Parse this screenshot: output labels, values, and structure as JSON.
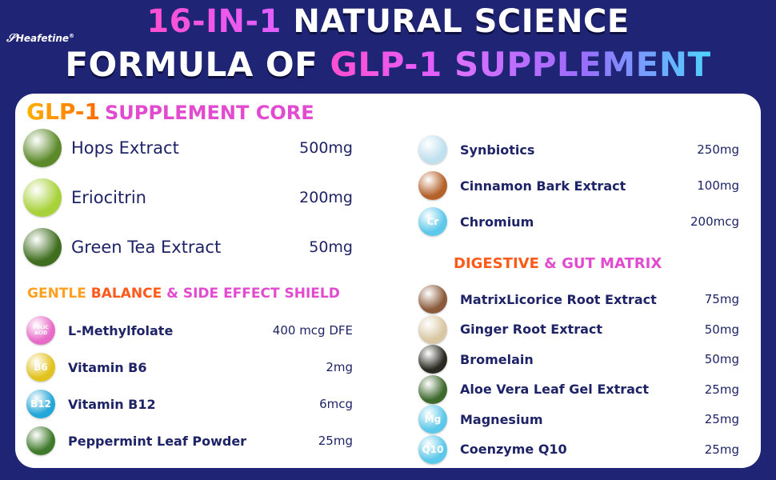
{
  "brand": "Heafetine",
  "title": {
    "line1_a": "16-IN-1",
    "line1_b": "NATURAL SCIENCE",
    "line2_a": "FORMULA OF",
    "line2_b": "GLP-1",
    "line2_c": "SUPPLEMENT"
  },
  "core": {
    "heading_a": "GLP-1",
    "heading_b": "SUPPLEMENT CORE",
    "items": [
      {
        "name": "Hops Extract",
        "dose": "500mg",
        "icon": "hops-icon",
        "color": "#5c8a2a"
      },
      {
        "name": "Eriocitrin",
        "dose": "200mg",
        "icon": "lime-icon",
        "color": "#a8d23a"
      },
      {
        "name": "Green Tea Extract",
        "dose": "50mg",
        "icon": "green-tea-icon",
        "color": "#3f6e1e"
      }
    ]
  },
  "gentle": {
    "heading_a": "GENTLE",
    "heading_b": "BALANCE",
    "heading_c": "& SIDE EFFECT SHIELD",
    "items": [
      {
        "name": "L-Methylfolate",
        "dose": "400 mcg DFE",
        "icon": "folic-acid-icon",
        "icon_text": "FOLIC ACID",
        "color": "#e86ac8"
      },
      {
        "name": "Vitamin B6",
        "dose": "2mg",
        "icon": "vitamin-b6-icon",
        "icon_text": "B6",
        "color": "#e2c21c"
      },
      {
        "name": "Vitamin B12",
        "dose": "6mcg",
        "icon": "vitamin-b12-icon",
        "icon_text": "B12",
        "color": "#23a6d8"
      },
      {
        "name": "Peppermint Leaf Powder",
        "dose": "25mg",
        "icon": "peppermint-icon",
        "color": "#3f7a2a"
      }
    ]
  },
  "right_top": {
    "items": [
      {
        "name": "Synbiotics",
        "dose": "250mg",
        "icon": "synbiotics-icon",
        "color": "#bfe0ef"
      },
      {
        "name": "Cinnamon Bark Extract",
        "dose": "100mg",
        "icon": "cinnamon-icon",
        "color": "#b5622a"
      },
      {
        "name": "Chromium",
        "dose": "200mcg",
        "icon": "chromium-icon",
        "icon_text": "Cr",
        "color": "#5cc8ea"
      }
    ]
  },
  "digestive": {
    "heading_a": "DIGESTIVE",
    "heading_b": "& GUT MATRIX",
    "items": [
      {
        "name": "MatrixLicorice Root Extract",
        "dose": "75mg",
        "icon": "licorice-icon",
        "color": "#8a5a3a"
      },
      {
        "name": "Ginger Root Extract",
        "dose": "50mg",
        "icon": "ginger-icon",
        "color": "#d9c7a3"
      },
      {
        "name": "Bromelain",
        "dose": "50mg",
        "icon": "pineapple-icon",
        "color": "#2a2a22"
      },
      {
        "name": "Aloe Vera Leaf Gel Extract",
        "dose": "25mg",
        "icon": "aloe-vera-icon",
        "color": "#3e6a2e"
      },
      {
        "name": "Magnesium",
        "dose": "25mg",
        "icon": "magnesium-icon",
        "icon_text": "Mg",
        "color": "#5cc8ea"
      },
      {
        "name": "Coenzyme Q10",
        "dose": "25mg",
        "icon": "coenzyme-q10-icon",
        "icon_text": "Q10",
        "color": "#5cc8ea"
      }
    ]
  }
}
